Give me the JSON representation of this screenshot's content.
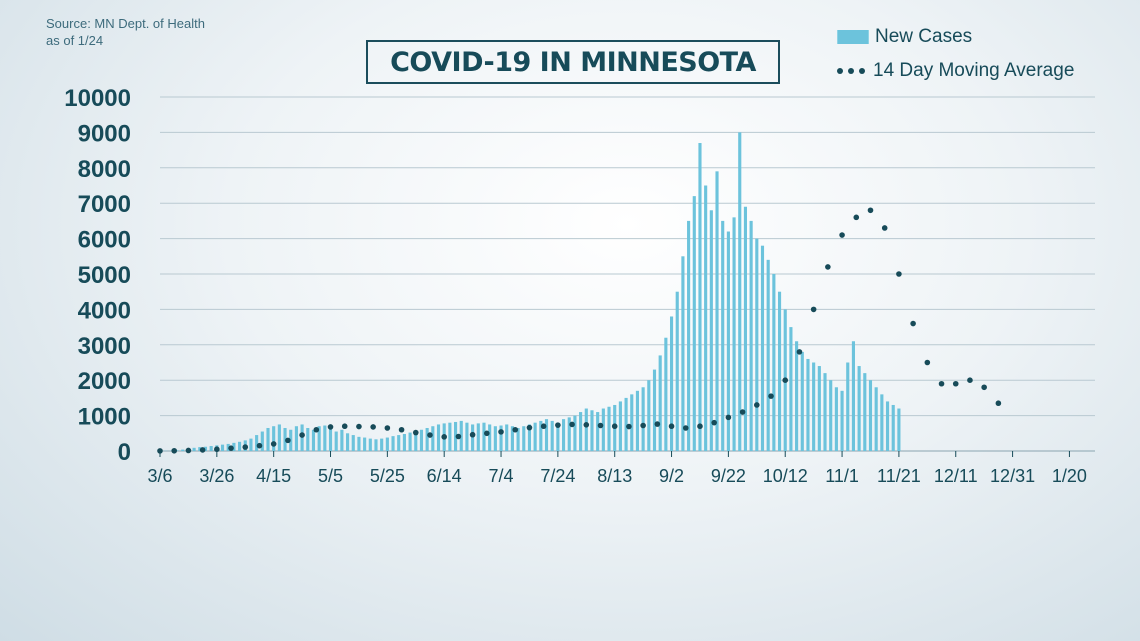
{
  "source": {
    "line1": "Source: MN Dept. of Health",
    "line2": "as of 1/24"
  },
  "title": "COVID-19 IN MINNESOTA",
  "legend": {
    "bars_label": "New Cases",
    "line_label": "14 Day Moving Average"
  },
  "colors": {
    "bars": "#6cc3dc",
    "line": "#174b59",
    "text": "#174b59",
    "grid": "#b9c9d1"
  },
  "chart_data": {
    "type": "bar",
    "title": "COVID-19 IN MINNESOTA",
    "xlabel": "",
    "ylabel": "",
    "ylim": [
      0,
      10000
    ],
    "yticks": [
      0,
      1000,
      2000,
      3000,
      4000,
      5000,
      6000,
      7000,
      8000,
      9000,
      10000
    ],
    "x_tick_labels": [
      "3/6",
      "3/26",
      "4/15",
      "5/5",
      "5/25",
      "6/14",
      "7/4",
      "7/24",
      "8/13",
      "9/2",
      "9/22",
      "10/12",
      "11/1",
      "11/21",
      "12/11",
      "12/31",
      "1/20"
    ],
    "x_tick_day_index": [
      0,
      20,
      40,
      60,
      80,
      100,
      120,
      140,
      160,
      180,
      200,
      220,
      240,
      260,
      280,
      300,
      320
    ],
    "legend_position": "top-right",
    "grid": true,
    "series": [
      {
        "name": "New Cases",
        "kind": "bar",
        "interval_days": 2,
        "values": [
          2,
          5,
          10,
          20,
          40,
          60,
          90,
          110,
          120,
          140,
          160,
          180,
          200,
          230,
          260,
          300,
          350,
          450,
          550,
          650,
          700,
          750,
          650,
          600,
          700,
          750,
          650,
          600,
          700,
          720,
          650,
          550,
          600,
          500,
          450,
          400,
          380,
          350,
          330,
          350,
          380,
          420,
          450,
          480,
          520,
          560,
          600,
          650,
          700,
          750,
          780,
          800,
          820,
          850,
          800,
          750,
          780,
          800,
          750,
          700,
          720,
          750,
          700,
          650,
          700,
          750,
          800,
          850,
          900,
          850,
          800,
          900,
          950,
          1000,
          1100,
          1200,
          1150,
          1100,
          1200,
          1250,
          1300,
          1400,
          1500,
          1600,
          1700,
          1800,
          2000,
          2300,
          2700,
          3200,
          3800,
          4500,
          5500,
          6500,
          7200,
          8700,
          7500,
          6800,
          7900,
          6500,
          6200,
          6600,
          9000,
          6900,
          6500,
          6000,
          5800,
          5400,
          5000,
          4500,
          4000,
          3500,
          3100,
          2800,
          2600,
          2500,
          2400,
          2200,
          2000,
          1800,
          1700,
          2500,
          3100,
          2400,
          2200,
          2000,
          1800,
          1600,
          1400,
          1300,
          1200
        ]
      },
      {
        "name": "14 Day Moving Average",
        "kind": "dotted-line",
        "interval_days": 5,
        "values": [
          3,
          6,
          15,
          30,
          50,
          80,
          110,
          150,
          200,
          300,
          450,
          600,
          680,
          700,
          690,
          680,
          650,
          600,
          520,
          450,
          400,
          410,
          460,
          500,
          540,
          600,
          660,
          700,
          730,
          750,
          740,
          720,
          700,
          690,
          720,
          760,
          700,
          650,
          700,
          800,
          950,
          1100,
          1300,
          1550,
          2000,
          2800,
          4000,
          5200,
          6100,
          6600,
          6800,
          6300,
          5000,
          3600,
          2500,
          1900,
          1900,
          2000,
          1800,
          1350
        ]
      }
    ]
  }
}
